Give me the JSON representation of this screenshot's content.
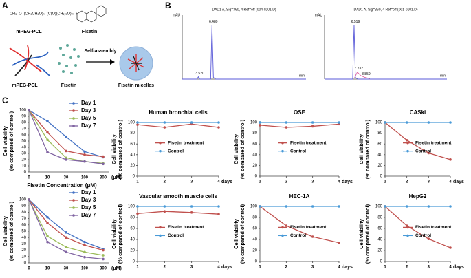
{
  "figure": {
    "panel_labels": [
      "A",
      "B",
      "C"
    ],
    "panel_a": {
      "formula": "CH₃–O–(CH₂CH₂O)ₙ–(C(O)(CH₂)₅O)ₘ–H",
      "polymer_label": "mPEG-PCL",
      "drug_label": "Fisetin",
      "polymer_label_2": "mPEG-PCL",
      "drug_label_2": "Fisetin",
      "process": "Self-assembly",
      "product": "Fisetin micelles"
    }
  },
  "chart_data": [
    {
      "type": "line",
      "title": "DAD1 A, Sig=360, 4 Ref=off (004-0201.D)",
      "y_unit": "mAU",
      "x_unit": "min",
      "xlim": [
        0,
        27
      ],
      "ylim": [
        0,
        100
      ],
      "series": [
        {
          "color": "#5a5ad8",
          "x": [
            0,
            3.2,
            3.52,
            3.8,
            6.2,
            6.489,
            6.8,
            7.3,
            27
          ],
          "values": [
            0,
            0,
            4,
            0,
            0,
            92,
            3,
            0,
            0
          ]
        }
      ],
      "annotations": [
        {
          "text": "3.520",
          "x": 3.52,
          "y": 4
        },
        {
          "text": "6.489",
          "x": 6.489,
          "y": 92
        }
      ]
    },
    {
      "type": "line",
      "title": "DAD1 A, Sig=360, 4 Ref=off (001-0101.D)",
      "y_unit": "mAU",
      "x_unit": "min",
      "xlim": [
        0,
        27
      ],
      "ylim": [
        0,
        100
      ],
      "series": [
        {
          "color": "#5a5ad8",
          "x": [
            0,
            6.2,
            6.519,
            6.8,
            7.3,
            27
          ],
          "values": [
            0,
            0,
            92,
            3,
            0,
            0
          ]
        },
        {
          "color": "#e05fa0",
          "x": [
            6.6,
            7.232,
            8,
            8.859,
            10
          ],
          "values": [
            2,
            12,
            6,
            3,
            1
          ]
        }
      ],
      "annotations": [
        {
          "text": "6.519",
          "x": 6.519,
          "y": 92
        },
        {
          "text": "7.232",
          "x": 7.232,
          "y": 12
        },
        {
          "text": "8.859",
          "x": 8.859,
          "y": 3
        }
      ]
    },
    {
      "type": "line",
      "y_label": [
        "Cell viability",
        "(% compared of control)"
      ],
      "x_label": "Fisetin Concentration (μM)",
      "x_unit": "(μM)",
      "legend": "upper right",
      "categories": [
        "0",
        "10",
        "30",
        "100",
        "300"
      ],
      "ylim": [
        0,
        100
      ],
      "yticks": [
        0,
        10,
        20,
        30,
        40,
        50,
        60,
        70,
        80,
        90,
        100
      ],
      "series": [
        {
          "name": "Day 1",
          "color": "#4472c4",
          "values": [
            100,
            82,
            57,
            33,
            24
          ]
        },
        {
          "name": "Day 3",
          "color": "#c0504d",
          "values": [
            100,
            64,
            34,
            28,
            25
          ]
        },
        {
          "name": "Day 5",
          "color": "#9bbb59",
          "values": [
            100,
            52,
            23,
            17,
            14
          ]
        },
        {
          "name": "Day 7",
          "color": "#8064a2",
          "values": [
            100,
            32,
            20,
            17,
            13
          ]
        }
      ]
    },
    {
      "type": "line",
      "y_label": [
        "Cell viability",
        "(% compared of control)"
      ],
      "x_unit": "(μM)",
      "legend": "upper right",
      "categories": [
        "0",
        "10",
        "30",
        "100",
        "300"
      ],
      "ylim": [
        0,
        100
      ],
      "yticks": [
        0,
        10,
        20,
        30,
        40,
        50,
        60,
        70,
        80,
        90,
        100
      ],
      "series": [
        {
          "name": "Day 1",
          "color": "#4472c4",
          "values": [
            100,
            72,
            48,
            33,
            22
          ]
        },
        {
          "name": "Day 3",
          "color": "#c0504d",
          "values": [
            100,
            63,
            40,
            28,
            20
          ]
        },
        {
          "name": "Day 5",
          "color": "#9bbb59",
          "values": [
            100,
            42,
            25,
            17,
            12
          ]
        },
        {
          "name": "Day 7",
          "color": "#8064a2",
          "values": [
            100,
            33,
            17,
            9,
            6
          ]
        }
      ]
    },
    {
      "type": "line",
      "title": "Human bronchial cells",
      "y_label": [
        "Cell viability",
        "(% compared of control)"
      ],
      "x_unit": "days",
      "legend": "center",
      "x": [
        1,
        2,
        3,
        4
      ],
      "xlim": [
        1,
        4
      ],
      "xticks": [
        1,
        2,
        3,
        4
      ],
      "ylim": [
        0,
        100
      ],
      "yticks": [
        0,
        20,
        40,
        60,
        80,
        100
      ],
      "series": [
        {
          "name": "Fisetin treatment",
          "color": "#c0504d",
          "values": [
            96,
            91,
            97,
            91
          ]
        },
        {
          "name": "Control",
          "color": "#4a9bd8",
          "values": [
            100,
            100,
            100,
            100
          ]
        }
      ]
    },
    {
      "type": "line",
      "title": "OSE",
      "y_label": [
        "Cell viability",
        "(% compared of control)"
      ],
      "x_unit": "days",
      "legend": "center",
      "x": [
        1,
        2,
        3,
        4
      ],
      "xlim": [
        1,
        4
      ],
      "xticks": [
        1,
        2,
        3,
        4
      ],
      "ylim": [
        0,
        100
      ],
      "yticks": [
        0,
        20,
        40,
        60,
        80,
        100
      ],
      "series": [
        {
          "name": "Fisetin treatment",
          "color": "#c0504d",
          "values": [
            95,
            91,
            93,
            97
          ]
        },
        {
          "name": "Control",
          "color": "#4a9bd8",
          "values": [
            100,
            100,
            100,
            100
          ]
        }
      ]
    },
    {
      "type": "line",
      "title": "CASki",
      "y_label": [
        "Cell viability",
        "(% compared of control)"
      ],
      "x_unit": "days",
      "legend": "center",
      "x": [
        1,
        2,
        3,
        4
      ],
      "xlim": [
        1,
        4
      ],
      "xticks": [
        1,
        2,
        3,
        4
      ],
      "ylim": [
        0,
        100
      ],
      "yticks": [
        0,
        20,
        40,
        60,
        80,
        100
      ],
      "series": [
        {
          "name": "Fisetin treatment",
          "color": "#c0504d",
          "values": [
            100,
            67,
            43,
            31
          ]
        },
        {
          "name": "Control",
          "color": "#4a9bd8",
          "values": [
            100,
            100,
            100,
            100
          ]
        }
      ]
    },
    {
      "type": "line",
      "title": "Vascular smooth muscle cells",
      "y_label": [
        "Cell viability",
        "(% compared of control)"
      ],
      "x_unit": "days",
      "legend": "center",
      "x": [
        1,
        2,
        3,
        4
      ],
      "xlim": [
        1,
        4
      ],
      "xticks": [
        1,
        2,
        3,
        4
      ],
      "ylim": [
        0,
        100
      ],
      "yticks": [
        0,
        20,
        40,
        60,
        80,
        100
      ],
      "series": [
        {
          "name": "Fisetin treatment",
          "color": "#c0504d",
          "values": [
            87,
            91,
            89,
            86
          ]
        },
        {
          "name": "Control",
          "color": "#4a9bd8",
          "values": [
            100,
            100,
            100,
            100
          ]
        }
      ]
    },
    {
      "type": "line",
      "title": "HEC-1A",
      "y_label": [
        "Cell viability",
        "(% compared of control)"
      ],
      "x_unit": "days",
      "legend": "center",
      "x": [
        1,
        2,
        3,
        4
      ],
      "xlim": [
        1,
        4
      ],
      "xticks": [
        1,
        2,
        3,
        4
      ],
      "ylim": [
        0,
        100
      ],
      "yticks": [
        0,
        20,
        40,
        60,
        80,
        100
      ],
      "series": [
        {
          "name": "Fisetin treatment",
          "color": "#c0504d",
          "values": [
            100,
            65,
            45,
            34
          ]
        },
        {
          "name": "Control",
          "color": "#4a9bd8",
          "values": [
            100,
            100,
            100,
            100
          ]
        }
      ]
    },
    {
      "type": "line",
      "title": "HepG2",
      "y_label": [
        "Cell viability",
        "(% compared of control)"
      ],
      "x_unit": "days",
      "legend": "center",
      "x": [
        1,
        2,
        3,
        4
      ],
      "xlim": [
        1,
        4
      ],
      "xticks": [
        1,
        2,
        3,
        4
      ],
      "ylim": [
        0,
        100
      ],
      "yticks": [
        0,
        20,
        40,
        60,
        80,
        100
      ],
      "series": [
        {
          "name": "Fisetin treatment",
          "color": "#c0504d",
          "values": [
            100,
            65,
            41,
            25
          ]
        },
        {
          "name": "Control",
          "color": "#4a9bd8",
          "values": [
            100,
            100,
            100,
            100
          ]
        }
      ]
    }
  ]
}
